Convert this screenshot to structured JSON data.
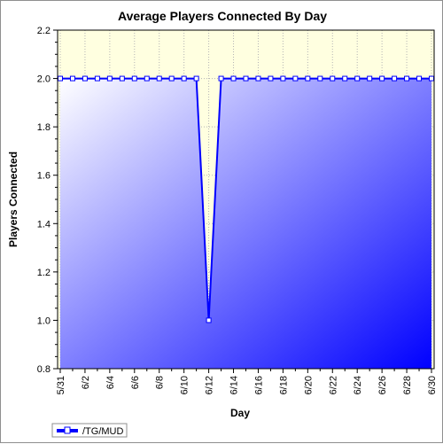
{
  "chart_data": {
    "type": "area",
    "title": "Average Players Connected By Day",
    "xlabel": "Day",
    "ylabel": "Players Connected",
    "ylim": [
      0.8,
      2.2
    ],
    "y_ticks": [
      "0.8",
      "1.0",
      "1.2",
      "1.4",
      "1.6",
      "1.8",
      "2.0",
      "2.2"
    ],
    "x_tick_labels": [
      "5/31",
      "6/2",
      "6/4",
      "6/6",
      "6/8",
      "6/10",
      "6/12",
      "6/14",
      "6/16",
      "6/18",
      "6/20",
      "6/22",
      "6/24",
      "6/26",
      "6/28",
      "6/30"
    ],
    "x": [
      "5/31",
      "6/1",
      "6/2",
      "6/3",
      "6/4",
      "6/5",
      "6/6",
      "6/7",
      "6/8",
      "6/9",
      "6/10",
      "6/11",
      "6/12",
      "6/13",
      "6/14",
      "6/15",
      "6/16",
      "6/17",
      "6/18",
      "6/19",
      "6/20",
      "6/21",
      "6/22",
      "6/23",
      "6/24",
      "6/25",
      "6/26",
      "6/27",
      "6/28",
      "6/29",
      "6/30"
    ],
    "series": [
      {
        "name": "/TG/MUD",
        "values": [
          2.0,
          2.0,
          2.0,
          2.0,
          2.0,
          2.0,
          2.0,
          2.0,
          2.0,
          2.0,
          2.0,
          2.0,
          1.0,
          2.0,
          2.0,
          2.0,
          2.0,
          2.0,
          2.0,
          2.0,
          2.0,
          2.0,
          2.0,
          2.0,
          2.0,
          2.0,
          2.0,
          2.0,
          2.0,
          2.0,
          2.0
        ]
      }
    ],
    "grid": true,
    "legend": "bottom-left",
    "colors": {
      "line": "#0000ff",
      "fill_light": "#ffffff",
      "fill_dark": "#0000ff",
      "plot_background": "#ffffe0",
      "grid": "#b4b4b4",
      "marker_fill": "#ffffff"
    }
  }
}
